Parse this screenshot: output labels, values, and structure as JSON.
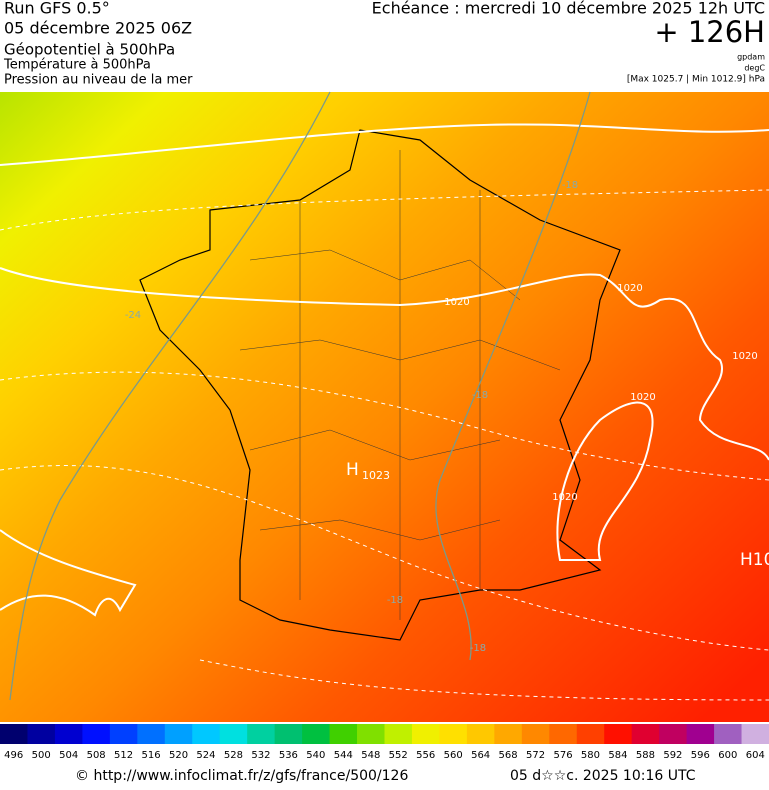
{
  "header": {
    "run": "Run GFS 0.5°",
    "date": "05 décembre 2025 06Z",
    "field1": "Géopotentiel à 500hPa",
    "field2": "Température à 500hPa",
    "field3": "Pression au niveau de la mer",
    "valid": "Echéance : mercredi 10 décembre 2025 12h UTC",
    "lead": "+ 126H",
    "unit1": "gpdam",
    "unit2": "degC",
    "range": "[Max 1025.7 | Min 1012.9] hPa"
  },
  "map": {
    "pressure_labels": [
      "1020",
      "1020",
      "1020",
      "1020",
      "1020"
    ],
    "high_1": {
      "symbol": "H",
      "value": "1023"
    },
    "high_2": "H10",
    "temp_labels": [
      "-24",
      "-18",
      "-18",
      "-18",
      "-18"
    ]
  },
  "colorbar": {
    "ticks": [
      496,
      500,
      504,
      508,
      512,
      516,
      520,
      524,
      528,
      532,
      536,
      540,
      544,
      548,
      552,
      556,
      560,
      564,
      568,
      572,
      576,
      580,
      584,
      588,
      592,
      596,
      600,
      604
    ],
    "colors": [
      "#00006e",
      "#0000a0",
      "#0000d0",
      "#0010ff",
      "#0040ff",
      "#0070ff",
      "#00a0ff",
      "#00c8ff",
      "#00e0e0",
      "#00d0a0",
      "#00c070",
      "#00c040",
      "#40d000",
      "#80e000",
      "#c0f000",
      "#f0f000",
      "#ffe000",
      "#ffc800",
      "#ffa800",
      "#ff8800",
      "#ff6800",
      "#ff4000",
      "#ff1000",
      "#e00030",
      "#c00060",
      "#a00090",
      "#a060c0",
      "#d0b0e0"
    ]
  },
  "footer": {
    "url": "© http://www.infoclimat.fr/z/gfs/france/500/126",
    "stamp": "05 d☆☆c. 2025 10:16 UTC"
  }
}
